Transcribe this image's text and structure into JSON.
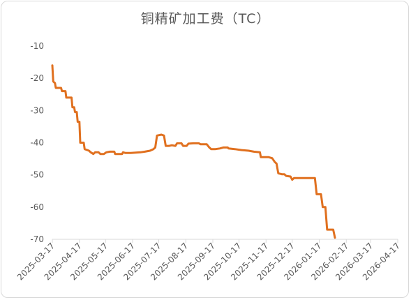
{
  "chart_data": {
    "type": "line",
    "title": "铜精矿加工费（TC）",
    "xlabel": "",
    "ylabel": "",
    "ylim": [
      -70,
      -10
    ],
    "yticks": [
      -10,
      -20,
      -30,
      -40,
      -50,
      -60,
      -70
    ],
    "x_tick_labels": [
      "2025-03-17",
      "2025-04-17",
      "2025-05-17",
      "2025-06-17",
      "2025-07-17",
      "2025-08-17",
      "2025-09-17",
      "2025-10-17",
      "2025-11-17",
      "2025-12-17",
      "2026-01-17",
      "2026-02-17",
      "2026-03-17",
      "2026-04-17"
    ],
    "xlim": [
      "2025-03-17",
      "2026-04-17"
    ],
    "grid": false,
    "legend": "none",
    "series": [
      {
        "color": "#E0701F",
        "points": [
          [
            "2025-03-17",
            -16
          ],
          [
            "2025-03-18",
            -21
          ],
          [
            "2025-03-20",
            -21.5
          ],
          [
            "2025-03-21",
            -23
          ],
          [
            "2025-03-27",
            -23
          ],
          [
            "2025-03-28",
            -24
          ],
          [
            "2025-04-01",
            -24
          ],
          [
            "2025-04-02",
            -26
          ],
          [
            "2025-04-08",
            -26
          ],
          [
            "2025-04-09",
            -29
          ],
          [
            "2025-04-11",
            -29
          ],
          [
            "2025-04-12",
            -30.5
          ],
          [
            "2025-04-14",
            -30.5
          ],
          [
            "2025-04-15",
            -33.5
          ],
          [
            "2025-04-17",
            -33.5
          ],
          [
            "2025-04-18",
            -40
          ],
          [
            "2025-04-22",
            -40
          ],
          [
            "2025-04-23",
            -42
          ],
          [
            "2025-04-28",
            -42.5
          ],
          [
            "2025-04-30",
            -43
          ],
          [
            "2025-05-03",
            -43.5
          ],
          [
            "2025-05-05",
            -43
          ],
          [
            "2025-05-09",
            -43
          ],
          [
            "2025-05-11",
            -43.5
          ],
          [
            "2025-05-15",
            -43.5
          ],
          [
            "2025-05-18",
            -43
          ],
          [
            "2025-05-22",
            -42.8
          ],
          [
            "2025-05-27",
            -42.8
          ],
          [
            "2025-05-28",
            -43.5
          ],
          [
            "2025-06-05",
            -43.5
          ],
          [
            "2025-06-06",
            -43
          ],
          [
            "2025-06-09",
            -43.2
          ],
          [
            "2025-06-15",
            -43.2
          ],
          [
            "2025-06-26",
            -43
          ],
          [
            "2025-07-01",
            -42.8
          ],
          [
            "2025-07-07",
            -42.5
          ],
          [
            "2025-07-11",
            -42
          ],
          [
            "2025-07-13",
            -41.5
          ],
          [
            "2025-07-15",
            -37.8
          ],
          [
            "2025-07-20",
            -37.5
          ],
          [
            "2025-07-23",
            -37.8
          ],
          [
            "2025-07-25",
            -41
          ],
          [
            "2025-07-29",
            -41
          ],
          [
            "2025-08-01",
            -40.8
          ],
          [
            "2025-08-05",
            -41
          ],
          [
            "2025-08-07",
            -40.2
          ],
          [
            "2025-08-12",
            -40.2
          ],
          [
            "2025-08-14",
            -41
          ],
          [
            "2025-08-18",
            -41
          ],
          [
            "2025-08-20",
            -40.3
          ],
          [
            "2025-08-26",
            -40.2
          ],
          [
            "2025-09-01",
            -40.2
          ],
          [
            "2025-09-03",
            -40.5
          ],
          [
            "2025-09-10",
            -40.5
          ],
          [
            "2025-09-13",
            -41.5
          ],
          [
            "2025-09-15",
            -42
          ],
          [
            "2025-09-20",
            -42
          ],
          [
            "2025-09-25",
            -41.8
          ],
          [
            "2025-09-29",
            -41.5
          ],
          [
            "2025-10-04",
            -41.5
          ],
          [
            "2025-10-05",
            -41.8
          ],
          [
            "2025-10-12",
            -42
          ],
          [
            "2025-10-20",
            -42.3
          ],
          [
            "2025-10-28",
            -42.5
          ],
          [
            "2025-11-03",
            -42.8
          ],
          [
            "2025-11-10",
            -43
          ],
          [
            "2025-11-11",
            -44.5
          ],
          [
            "2025-11-20",
            -44.5
          ],
          [
            "2025-11-24",
            -44.8
          ],
          [
            "2025-11-27",
            -46
          ],
          [
            "2025-11-29",
            -46.5
          ],
          [
            "2025-12-01",
            -49.5
          ],
          [
            "2025-12-05",
            -49.8
          ],
          [
            "2025-12-08",
            -49.8
          ],
          [
            "2025-12-10",
            -50.3
          ],
          [
            "2025-12-15",
            -50.5
          ],
          [
            "2025-12-17",
            -51.5
          ],
          [
            "2025-12-19",
            -51
          ],
          [
            "2026-01-12",
            -51
          ],
          [
            "2026-01-14",
            -56
          ],
          [
            "2026-01-19",
            -56
          ],
          [
            "2026-01-21",
            -60
          ],
          [
            "2026-01-24",
            -60
          ],
          [
            "2026-01-26",
            -67
          ],
          [
            "2026-02-02",
            -67
          ],
          [
            "2026-02-04",
            -69.5
          ]
        ]
      }
    ]
  }
}
